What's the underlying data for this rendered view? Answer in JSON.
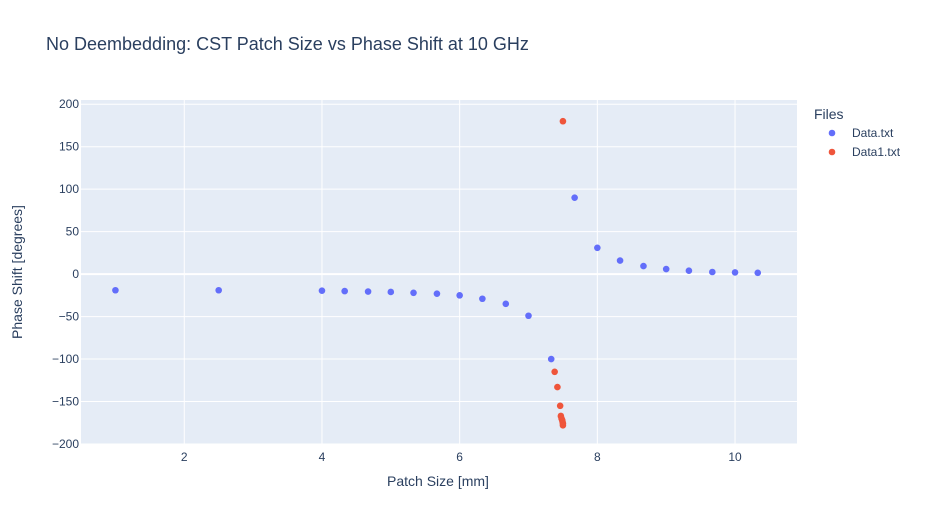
{
  "chart_data": {
    "type": "scatter",
    "title": "No Deembedding: CST Patch Size vs Phase Shift at 10 GHz",
    "xlabel": "Patch Size [mm]",
    "ylabel": "Phase Shift [degrees]",
    "xlim": [
      0.5,
      10.9
    ],
    "ylim": [
      -200,
      205
    ],
    "xticks": [
      2,
      4,
      6,
      8,
      10
    ],
    "yticks": [
      -200,
      -150,
      -100,
      -50,
      0,
      50,
      100,
      150,
      200
    ],
    "grid": true,
    "legend_title": "Files",
    "legend_position": "top-right",
    "series": [
      {
        "name": "Data.txt",
        "color": "#636efa",
        "points": [
          [
            1.0,
            -19
          ],
          [
            2.5,
            -19
          ],
          [
            4.0,
            -19.5
          ],
          [
            4.33,
            -20
          ],
          [
            4.67,
            -20.5
          ],
          [
            5.0,
            -21
          ],
          [
            5.33,
            -22
          ],
          [
            5.67,
            -23
          ],
          [
            6.0,
            -25
          ],
          [
            6.33,
            -29
          ],
          [
            6.67,
            -35
          ],
          [
            7.0,
            -49
          ],
          [
            7.33,
            -100
          ],
          [
            7.67,
            90
          ],
          [
            8.0,
            31
          ],
          [
            8.33,
            16
          ],
          [
            8.67,
            9.5
          ],
          [
            9.0,
            6
          ],
          [
            9.33,
            4
          ],
          [
            9.67,
            2.5
          ],
          [
            10.0,
            2
          ],
          [
            10.33,
            1.5
          ]
        ]
      },
      {
        "name": "Data1.txt",
        "color": "#ef553b",
        "points": [
          [
            7.5,
            180
          ],
          [
            7.38,
            -115
          ],
          [
            7.42,
            -133
          ],
          [
            7.46,
            -155
          ],
          [
            7.47,
            -167
          ],
          [
            7.48,
            -170
          ],
          [
            7.49,
            -172
          ],
          [
            7.495,
            -174
          ],
          [
            7.5,
            -176
          ],
          [
            7.5,
            -178
          ]
        ]
      }
    ]
  }
}
